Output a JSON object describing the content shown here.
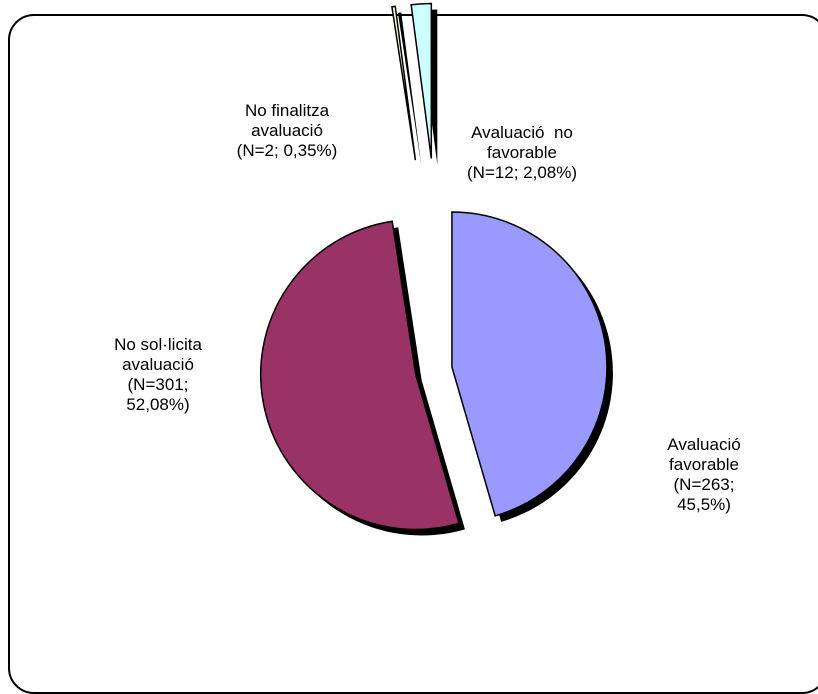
{
  "chart_data": {
    "type": "pie",
    "title": "",
    "slices": [
      {
        "label_lines": [
          "Avaluació",
          "favorable",
          "(N=263;",
          "45,5%)"
        ],
        "value": 263,
        "percent": 45.5,
        "color": "#9999ff"
      },
      {
        "label_lines": [
          "No sol·licita",
          "avaluació",
          "(N=301;",
          "52,08%)"
        ],
        "value": 301,
        "percent": 52.08,
        "color": "#993366"
      },
      {
        "label_lines": [
          "No finalitza",
          "avaluació",
          "(N=2; 0,35%)"
        ],
        "value": 2,
        "percent": 0.35,
        "color": "#ffffcc"
      },
      {
        "label_lines": [
          "Avaluació  no",
          "favorable",
          "(N=12; 2,08%)"
        ],
        "value": 12,
        "percent": 2.08,
        "color": "#ccffff"
      }
    ],
    "legend": "none",
    "exploded": true,
    "shadow": true
  }
}
